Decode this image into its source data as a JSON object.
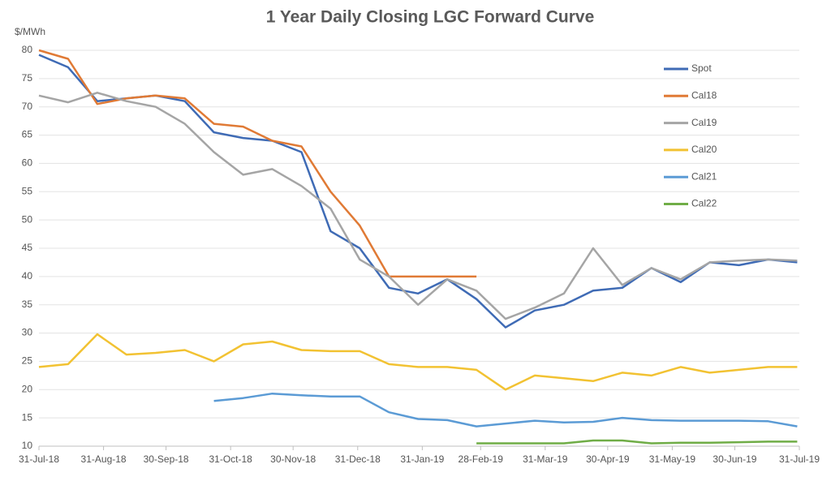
{
  "chart_data": {
    "type": "line",
    "title": "1 Year Daily Closing LGC Forward Curve",
    "y_label": "$/MWh",
    "x": [
      "2018-07-31",
      "2018-08-14",
      "2018-08-28",
      "2018-09-11",
      "2018-09-25",
      "2018-10-09",
      "2018-10-23",
      "2018-11-06",
      "2018-11-20",
      "2018-12-04",
      "2018-12-18",
      "2019-01-01",
      "2019-01-15",
      "2019-01-29",
      "2019-02-12",
      "2019-02-26",
      "2019-03-12",
      "2019-03-26",
      "2019-04-09",
      "2019-04-23",
      "2019-05-07",
      "2019-05-21",
      "2019-06-04",
      "2019-06-18",
      "2019-07-02",
      "2019-07-16",
      "2019-07-30"
    ],
    "xlim": [
      "2018-07-31",
      "2019-07-31"
    ],
    "xticks": [
      {
        "value": "2018-07-31",
        "label": "31-Jul-18"
      },
      {
        "value": "2018-08-31",
        "label": "31-Aug-18"
      },
      {
        "value": "2018-09-30",
        "label": "30-Sep-18"
      },
      {
        "value": "2018-10-31",
        "label": "31-Oct-18"
      },
      {
        "value": "2018-11-30",
        "label": "30-Nov-18"
      },
      {
        "value": "2018-12-31",
        "label": "31-Dec-18"
      },
      {
        "value": "2019-01-31",
        "label": "31-Jan-19"
      },
      {
        "value": "2019-02-28",
        "label": "28-Feb-19"
      },
      {
        "value": "2019-03-31",
        "label": "31-Mar-19"
      },
      {
        "value": "2019-04-30",
        "label": "30-Apr-19"
      },
      {
        "value": "2019-05-31",
        "label": "31-May-19"
      },
      {
        "value": "2019-06-30",
        "label": "30-Jun-19"
      },
      {
        "value": "2019-07-31",
        "label": "31-Jul-19"
      }
    ],
    "ylim": [
      10,
      80
    ],
    "yticks": [
      10,
      15,
      20,
      25,
      30,
      35,
      40,
      45,
      50,
      55,
      60,
      65,
      70,
      75,
      80
    ],
    "grid": true,
    "series": [
      {
        "name": "Spot",
        "color": "#3f6bb5",
        "values": [
          79.2,
          77,
          71,
          71.5,
          72,
          71,
          65.5,
          64.5,
          64,
          62,
          48,
          45,
          38,
          37,
          39.5,
          36,
          31,
          34,
          35,
          37.5,
          38,
          41.5,
          39,
          42.5,
          42,
          43,
          42.5
        ]
      },
      {
        "name": "Cal18",
        "color": "#e07a35",
        "values": [
          80,
          78.5,
          70.5,
          71.5,
          72,
          71.5,
          67,
          66.5,
          64,
          63,
          55,
          49,
          40,
          40,
          40,
          40,
          null,
          null,
          null,
          null,
          null,
          null,
          null,
          null,
          null,
          null,
          null
        ]
      },
      {
        "name": "Cal19",
        "color": "#a5a5a5",
        "values": [
          72,
          70.8,
          72.5,
          71,
          70,
          67,
          62,
          58,
          59,
          56,
          52,
          43,
          40,
          35,
          39.5,
          37.5,
          32.5,
          34.5,
          37,
          45,
          38.5,
          41.5,
          39.5,
          42.5,
          42.8,
          43,
          42.8
        ]
      },
      {
        "name": "Cal20",
        "color": "#f2c232",
        "values": [
          24,
          24.5,
          29.8,
          26.2,
          26.5,
          27,
          25,
          28,
          28.5,
          27,
          26.8,
          26.8,
          24.5,
          24,
          24,
          23.5,
          20,
          22.5,
          22,
          21.5,
          23,
          22.5,
          24,
          23,
          23.5,
          24,
          24
        ]
      },
      {
        "name": "Cal21",
        "color": "#5b9bd5",
        "values": [
          null,
          null,
          null,
          null,
          null,
          null,
          18,
          18.5,
          19.3,
          19,
          18.8,
          18.8,
          16,
          14.8,
          14.6,
          13.5,
          14,
          14.5,
          14.2,
          14.3,
          15,
          14.6,
          14.5,
          14.5,
          14.5,
          14.4,
          13.5
        ]
      },
      {
        "name": "Cal22",
        "color": "#70ad47",
        "values": [
          null,
          null,
          null,
          null,
          null,
          null,
          null,
          null,
          null,
          null,
          null,
          null,
          null,
          null,
          null,
          10.5,
          10.5,
          10.5,
          10.5,
          11,
          11,
          10.5,
          10.6,
          10.6,
          10.7,
          10.8,
          10.8
        ]
      }
    ]
  }
}
